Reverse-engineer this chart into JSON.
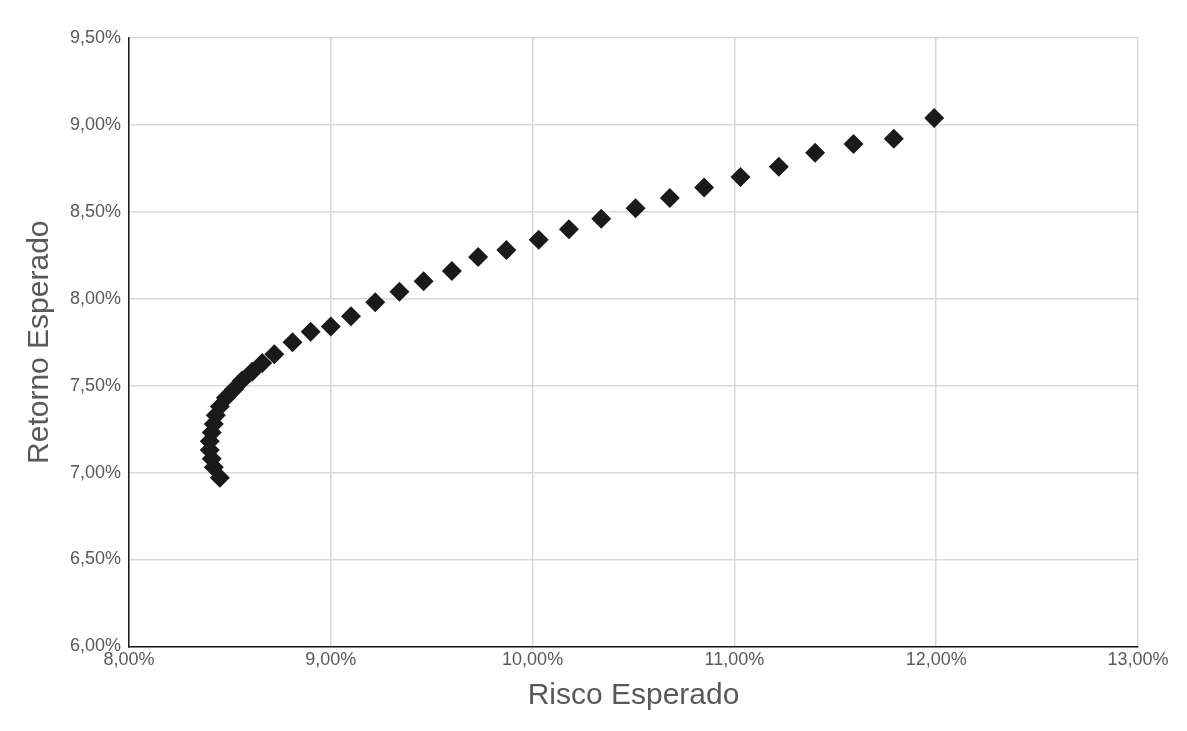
{
  "chart_data": {
    "type": "scatter",
    "xlabel": "Risco Esperado",
    "ylabel": "Retorno Esperado",
    "marker": "diamond",
    "grid": true,
    "legend": false,
    "xlim": [
      8,
      13
    ],
    "xticks": [
      {
        "value": 8,
        "label": "8,00%"
      },
      {
        "value": 9,
        "label": "9,00%"
      },
      {
        "value": 10,
        "label": "10,00%"
      },
      {
        "value": 11,
        "label": "11,00%"
      },
      {
        "value": 12,
        "label": "12,00%"
      },
      {
        "value": 13,
        "label": "13,00%"
      }
    ],
    "ylim": [
      6,
      9.5
    ],
    "yticks": [
      {
        "value": 6,
        "label": "6,00%"
      },
      {
        "value": 6.5,
        "label": "6,50%"
      },
      {
        "value": 7,
        "label": "7,00%"
      },
      {
        "value": 7.5,
        "label": "7,50%"
      },
      {
        "value": 8,
        "label": "8,00%"
      },
      {
        "value": 8.5,
        "label": "8,50%"
      },
      {
        "value": 9,
        "label": "9,00%"
      },
      {
        "value": 9.5,
        "label": "9,50%"
      }
    ],
    "series": [
      {
        "color": "#1a1a1a",
        "x": [
          8.45,
          8.42,
          8.41,
          8.4,
          8.4,
          8.41,
          8.42,
          8.43,
          8.45,
          8.48,
          8.52,
          8.56,
          8.61,
          8.66,
          8.72,
          8.81,
          8.9,
          9.0,
          9.1,
          9.22,
          9.34,
          9.46,
          9.6,
          9.73,
          9.87,
          10.03,
          10.18,
          10.34,
          10.51,
          10.68,
          10.85,
          11.03,
          11.22,
          11.4,
          11.59,
          11.79,
          11.99
        ],
        "values": [
          6.97,
          7.03,
          7.08,
          7.13,
          7.18,
          7.23,
          7.28,
          7.33,
          7.38,
          7.43,
          7.48,
          7.53,
          7.58,
          7.63,
          7.68,
          7.75,
          7.81,
          7.84,
          7.9,
          7.98,
          8.04,
          8.1,
          8.16,
          8.24,
          8.28,
          8.34,
          8.4,
          8.46,
          8.52,
          8.58,
          8.64,
          8.7,
          8.76,
          8.84,
          8.89,
          8.92,
          9.04
        ]
      }
    ]
  }
}
